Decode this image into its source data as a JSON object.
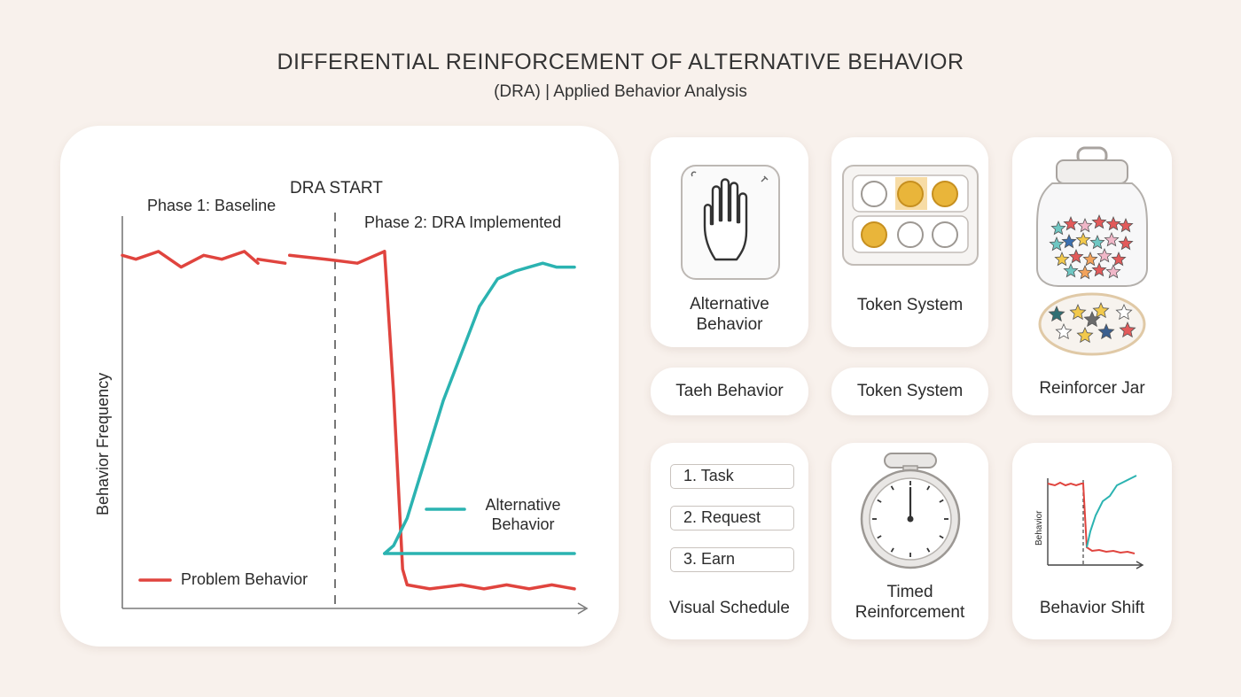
{
  "header": {
    "title": "DIFFERENTIAL REINFORCEMENT OF ALTERNATIVE BEHAVIOR",
    "subtitle": "(DRA) | Applied Behavior Analysis"
  },
  "chart_data": {
    "type": "line",
    "title": "",
    "xlabel": "",
    "ylabel": "Behavior Frequency",
    "grid": false,
    "annotations": [
      "DRA START",
      "Phase 1: Baseline",
      "Phase 2: DRA Implemented"
    ],
    "legend": [
      "Problem Behavior",
      "Alternative Behavior"
    ],
    "series": [
      {
        "name": "Problem Behavior",
        "color": "#e0443e",
        "segments": [
          [
            [
              0,
              90
            ],
            [
              3,
              89
            ],
            [
              8,
              91
            ],
            [
              13,
              87
            ],
            [
              18,
              90
            ],
            [
              22,
              89
            ],
            [
              27,
              91
            ],
            [
              30,
              88
            ]
          ],
          [
            [
              30,
              89
            ],
            [
              36,
              88
            ]
          ],
          [
            [
              37,
              90
            ],
            [
              45,
              89
            ],
            [
              52,
              88
            ],
            [
              58,
              91
            ]
          ],
          [
            [
              58,
              91
            ],
            [
              60,
              55
            ],
            [
              62,
              10
            ],
            [
              63,
              6
            ],
            [
              68,
              5
            ],
            [
              75,
              6
            ],
            [
              80,
              5
            ],
            [
              85,
              6
            ],
            [
              90,
              5
            ],
            [
              95,
              6
            ],
            [
              100,
              5
            ]
          ]
        ]
      },
      {
        "name": "Alternative Behavior",
        "color": "#2bb3b1",
        "segments": [
          [
            [
              58,
              14
            ],
            [
              100,
              14
            ]
          ],
          [
            [
              58,
              14
            ],
            [
              60,
              16
            ],
            [
              63,
              23
            ],
            [
              67,
              38
            ],
            [
              71,
              53
            ],
            [
              75,
              65
            ],
            [
              79,
              77
            ],
            [
              83,
              84
            ],
            [
              87,
              86
            ],
            [
              90,
              87
            ],
            [
              93,
              88
            ],
            [
              96,
              87
            ],
            [
              100,
              87
            ]
          ]
        ]
      }
    ]
  },
  "cards": {
    "alternative_behavior": "Alternative Behavior",
    "token_system_top": "Token System",
    "task_behavior": "Taeh Behavior",
    "token_system_bottom": "Token System",
    "reinforcer_jar": "Reinforcer Jar",
    "visual_schedule": {
      "items": [
        "1.  Task",
        "2.  Request",
        "3.  Earn"
      ],
      "label": "Visual Schedule"
    },
    "timed_reinforcement": "Timed Reinforcement",
    "behavior_shift": {
      "label": "Behavior Shift",
      "axis_label": "Behavior"
    }
  },
  "colors": {
    "problem": "#e0443e",
    "alternative": "#2bb3b1",
    "background": "#f8f1ec",
    "token_gold": "#e9b53a"
  },
  "icons": [
    "hand-icon",
    "token-board-icon",
    "star-jar-icon",
    "star-plate-icon",
    "stopwatch-icon",
    "mini-chart-icon"
  ]
}
